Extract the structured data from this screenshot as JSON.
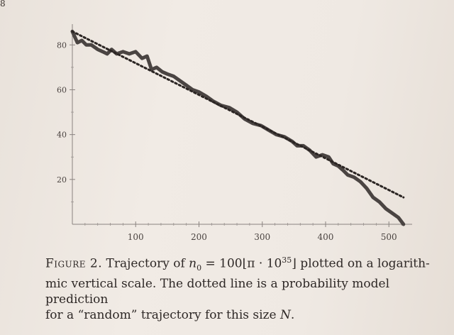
{
  "page_number": "8",
  "caption": {
    "figure_label": "Figure 2.",
    "text_1": " Trajectory of ",
    "math_1_var": "n",
    "math_1_sub": "0",
    "math_1_rest": " = 100⌊π · 10",
    "math_1_sup": "35",
    "math_1_close": "⌋",
    "text_2": " plotted on a logarith-",
    "line_2": "mic vertical scale. The dotted line is a probability model prediction",
    "line_3_a": "for a “random” trajectory for this size ",
    "line_3_var": "N",
    "line_3_b": "."
  },
  "chart_data": {
    "type": "line",
    "xlim": [
      0,
      530
    ],
    "ylim": [
      0,
      88
    ],
    "x_ticks": [
      100,
      200,
      300,
      400,
      500
    ],
    "y_ticks": [
      20,
      40,
      60,
      80
    ],
    "grid": false,
    "series": [
      {
        "style": "solid-thick",
        "color": "#4a4442",
        "points": [
          [
            0,
            86
          ],
          [
            8,
            81
          ],
          [
            15,
            82
          ],
          [
            22,
            80
          ],
          [
            30,
            80
          ],
          [
            40,
            78
          ],
          [
            48,
            77
          ],
          [
            55,
            76
          ],
          [
            62,
            78
          ],
          [
            70,
            76
          ],
          [
            80,
            77
          ],
          [
            90,
            76
          ],
          [
            100,
            77
          ],
          [
            110,
            74
          ],
          [
            118,
            75
          ],
          [
            125,
            69
          ],
          [
            133,
            70
          ],
          [
            142,
            68
          ],
          [
            150,
            67
          ],
          [
            160,
            66
          ],
          [
            170,
            64
          ],
          [
            180,
            62
          ],
          [
            190,
            60
          ],
          [
            200,
            59
          ],
          [
            212,
            57
          ],
          [
            222,
            55
          ],
          [
            235,
            53
          ],
          [
            248,
            52
          ],
          [
            260,
            50
          ],
          [
            272,
            47
          ],
          [
            285,
            45
          ],
          [
            298,
            44
          ],
          [
            310,
            42
          ],
          [
            322,
            40
          ],
          [
            335,
            39
          ],
          [
            347,
            37
          ],
          [
            355,
            35
          ],
          [
            365,
            35
          ],
          [
            375,
            33
          ],
          [
            385,
            30
          ],
          [
            395,
            31
          ],
          [
            405,
            30
          ],
          [
            412,
            27
          ],
          [
            420,
            26
          ],
          [
            428,
            24
          ],
          [
            435,
            22
          ],
          [
            445,
            21
          ],
          [
            455,
            19
          ],
          [
            465,
            16
          ],
          [
            475,
            12
          ],
          [
            485,
            10
          ],
          [
            495,
            7
          ],
          [
            505,
            5
          ],
          [
            515,
            3
          ],
          [
            523,
            0
          ]
        ]
      },
      {
        "style": "dotted",
        "color": "#2a2422",
        "points": [
          [
            0,
            86
          ],
          [
            523,
            12
          ]
        ]
      }
    ]
  }
}
